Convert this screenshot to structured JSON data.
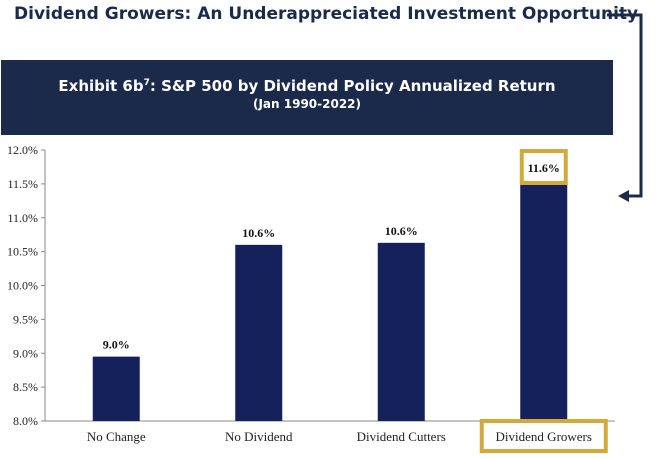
{
  "headline": "Dividend Growers: An Underappreciated Investment Opportunity",
  "banner": {
    "title_prefix": "Exhibit 6b",
    "title_sup": "7",
    "title_suffix": ": S&P 500 by Dividend Policy Annualized Return",
    "subtitle": "(Jan 1990-2022)"
  },
  "colors": {
    "navy": "#14215a",
    "banner": "#1b2a4a",
    "highlight": "#d4a93c"
  },
  "chart_data": {
    "type": "bar",
    "title": "S&P 500 by Dividend Policy Annualized Return (Jan 1990-2022)",
    "categories": [
      "No Change",
      "No Dividend",
      "Dividend Cutters",
      "Dividend Growers"
    ],
    "values": [
      8.95,
      10.6,
      10.63,
      11.55
    ],
    "data_labels": [
      "9.0%",
      "10.6%",
      "10.6%",
      "11.6%"
    ],
    "highlighted": [
      3
    ],
    "ylim": [
      8.0,
      12.0
    ],
    "yticks": [
      8.0,
      8.5,
      9.0,
      9.5,
      10.0,
      10.5,
      11.0,
      11.5,
      12.0
    ],
    "ytick_labels": [
      "8.0%",
      "8.5%",
      "9.0%",
      "9.5%",
      "10.0%",
      "10.5%",
      "11.0%",
      "11.5%",
      "12.0%"
    ],
    "xlabel": "",
    "ylabel": ""
  }
}
